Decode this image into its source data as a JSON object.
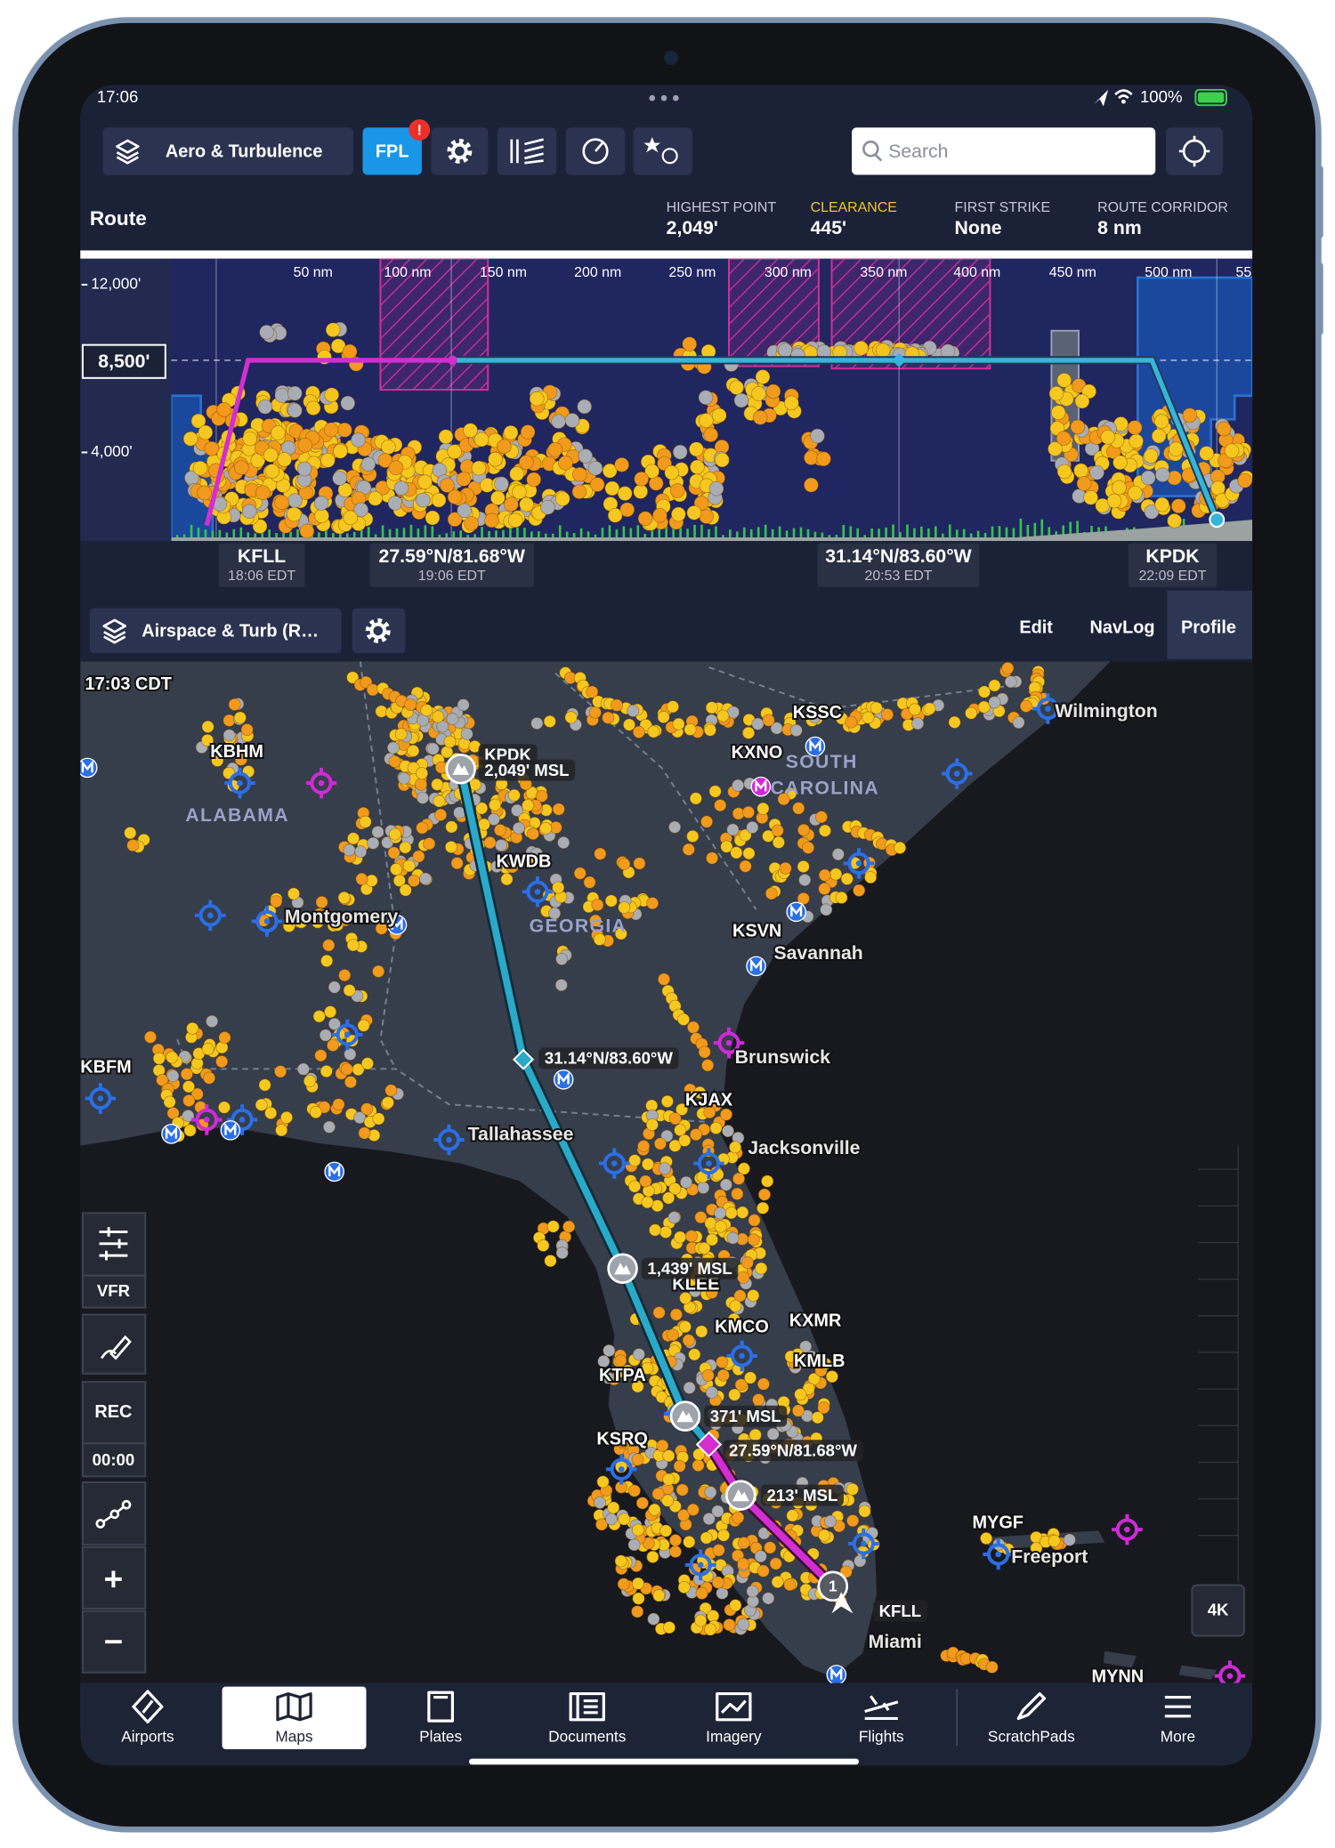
{
  "status_bar": {
    "time": "17:06",
    "battery": "100%"
  },
  "toolbar": {
    "layers": "Aero & Turbulence",
    "fpl": "FPL",
    "fpl_badge": "!",
    "search": "Search"
  },
  "route_header": {
    "title": "Route",
    "stats": [
      {
        "label": "HIGHEST POINT",
        "value": "2,049'"
      },
      {
        "label": "CLEARANCE",
        "value": "445'"
      },
      {
        "label": "FIRST STRIKE",
        "value": "None"
      },
      {
        "label": "ROUTE CORRIDOR",
        "value": "8 nm"
      }
    ]
  },
  "profile": {
    "altitudes": [
      "12,000'",
      "4,000'"
    ],
    "cruise_altitude": "8,500'",
    "distances": [
      "50 nm",
      "100 nm",
      "150 nm",
      "200 nm",
      "250 nm",
      "300 nm",
      "350 nm",
      "400 nm",
      "450 nm",
      "500 nm",
      "55"
    ],
    "waypoints": [
      {
        "name": "KFLL",
        "time": "18:06 EDT"
      },
      {
        "name": "27.59°N/81.68°W",
        "time": "19:06 EDT"
      },
      {
        "name": "31.14°N/83.60°W",
        "time": "20:53 EDT"
      },
      {
        "name": "KPDK",
        "time": "22:09 EDT"
      }
    ]
  },
  "map_toolbar": {
    "layers": "Airspace & Turb (R…",
    "tabs": [
      "Edit",
      "NavLog",
      "Profile"
    ]
  },
  "map": {
    "time": "17:03 CDT",
    "labels": [
      "KBHM",
      "ALABAMA",
      "Montgomery",
      "KWDB",
      "GEORGIA",
      "KXNO",
      "KSSC",
      "SOUTH",
      "CAROLINA",
      "Wilmington",
      "KSVN",
      "Savannah",
      "Brunswick",
      "KJAX",
      "Jacksonville",
      "Tallahassee",
      "KBFM",
      "KLEE",
      "KXMR",
      "KMCO",
      "KMLB",
      "KTPA",
      "KSRQ",
      "MYGF",
      "Freeport",
      "Miami",
      "MYNN"
    ],
    "route_labels": [
      "KPDK",
      "2,049' MSL",
      "31.14°N/83.60°W",
      "1,439' MSL",
      "371' MSL",
      "27.59°N/81.68°W",
      "213' MSL",
      "KFLL"
    ],
    "waypoint_number": "1"
  },
  "map_controls": {
    "mode": "VFR",
    "record": "REC",
    "timer": "00:00",
    "resolution": "4K"
  },
  "tab_bar": {
    "tabs": [
      "Airports",
      "Maps",
      "Plates",
      "Documents",
      "Imagery",
      "Flights",
      "ScratchPads",
      "More"
    ]
  }
}
